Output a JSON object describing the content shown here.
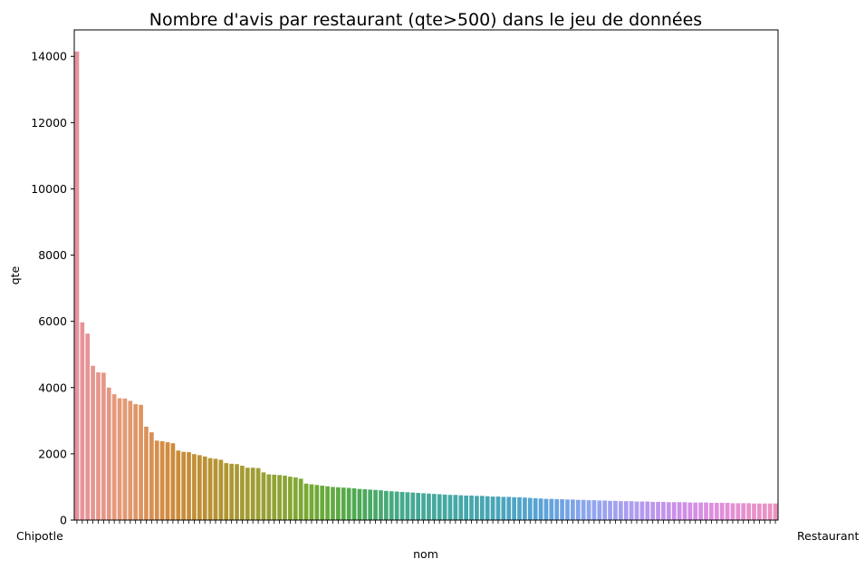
{
  "chart_data": {
    "type": "bar",
    "title": "Nombre d'avis par restaurant (qte>500) dans le jeu de données",
    "xlabel": "nom",
    "ylabel": "qte",
    "ylim": [
      0,
      14800
    ],
    "yticks": [
      0,
      2000,
      4000,
      6000,
      8000,
      10000,
      12000,
      14000
    ],
    "ytick_labels": [
      "0",
      "2000",
      "4000",
      "6000",
      "8000",
      "10000",
      "12000",
      "14000"
    ],
    "grid": false,
    "legend": "none",
    "first_category_visible": "Chipotle",
    "last_category_visible": "Restaurant",
    "values": [
      14150,
      5970,
      5630,
      4660,
      4460,
      4450,
      4000,
      3800,
      3680,
      3670,
      3600,
      3500,
      3480,
      2820,
      2650,
      2400,
      2380,
      2350,
      2320,
      2100,
      2060,
      2050,
      1990,
      1960,
      1920,
      1870,
      1850,
      1820,
      1720,
      1700,
      1690,
      1640,
      1580,
      1580,
      1570,
      1440,
      1380,
      1370,
      1360,
      1340,
      1310,
      1290,
      1250,
      1100,
      1080,
      1060,
      1040,
      1020,
      1000,
      990,
      980,
      970,
      960,
      940,
      930,
      920,
      910,
      900,
      880,
      870,
      860,
      850,
      840,
      830,
      820,
      810,
      800,
      790,
      780,
      770,
      760,
      760,
      750,
      740,
      740,
      730,
      730,
      720,
      710,
      710,
      700,
      700,
      690,
      690,
      680,
      670,
      660,
      650,
      640,
      640,
      630,
      630,
      620,
      620,
      610,
      610,
      600,
      600,
      590,
      590,
      580,
      580,
      570,
      570,
      570,
      560,
      560,
      560,
      550,
      550,
      550,
      540,
      540,
      540,
      540,
      530,
      530,
      530,
      530,
      520,
      520,
      520,
      520,
      510,
      510,
      510,
      510,
      500,
      500,
      500,
      500,
      500
    ],
    "colors": [
      "#e8929f",
      "#e49a76",
      "#d08a3c",
      "#b49431",
      "#9aa035",
      "#77aa33",
      "#4ea952",
      "#45aa8f",
      "#45a8a3",
      "#48a6b8",
      "#5aa2d8",
      "#8fa5f0",
      "#b09cf0",
      "#cf8ee8",
      "#e48fd8",
      "#ea93bf"
    ]
  }
}
